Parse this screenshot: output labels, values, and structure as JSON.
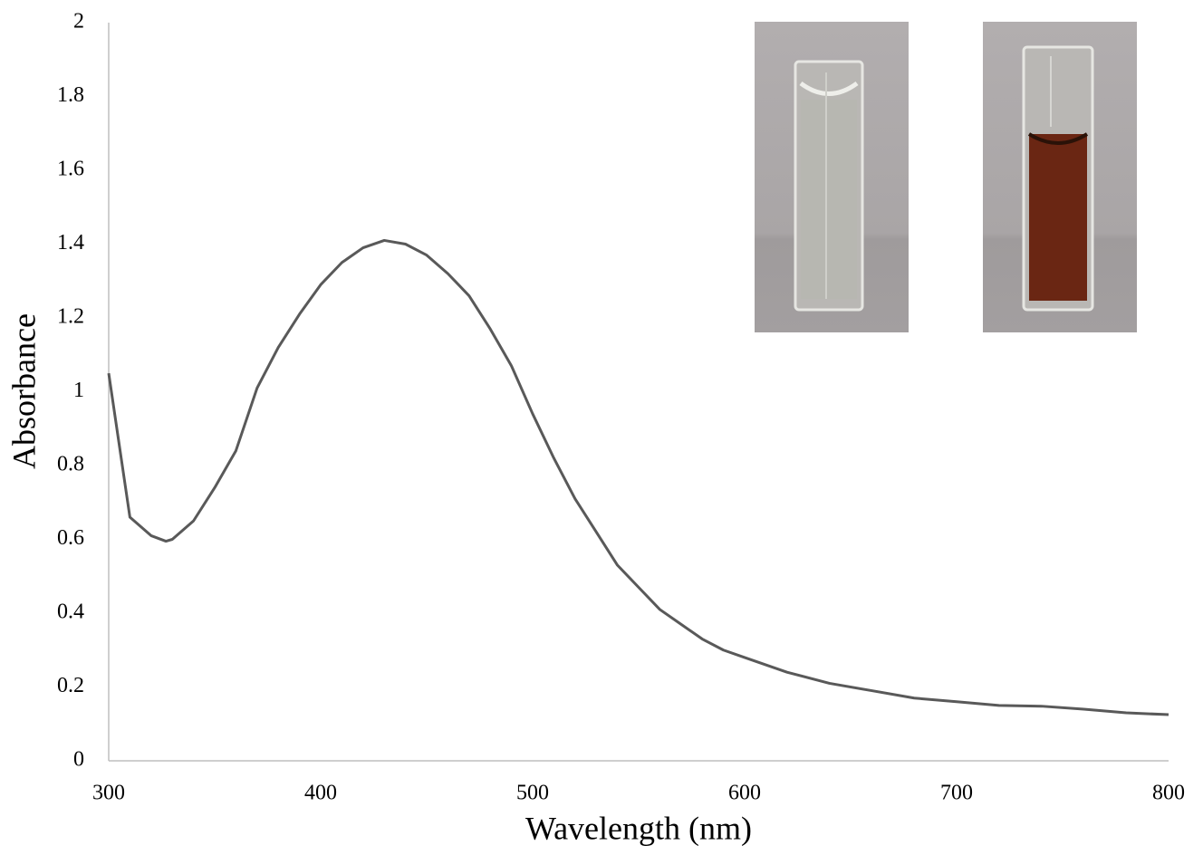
{
  "chart_data": {
    "type": "line",
    "x_label": "Wavelength (nm)",
    "y_label": "Absorbance",
    "x": [
      300,
      310,
      320,
      327,
      330,
      340,
      350,
      360,
      370,
      380,
      390,
      400,
      410,
      420,
      430,
      440,
      450,
      460,
      470,
      480,
      490,
      500,
      510,
      520,
      530,
      540,
      550,
      560,
      570,
      580,
      590,
      600,
      620,
      640,
      660,
      680,
      700,
      720,
      740,
      760,
      780,
      800
    ],
    "values": [
      1.05,
      0.66,
      0.61,
      0.595,
      0.6,
      0.65,
      0.74,
      0.84,
      1.01,
      1.12,
      1.21,
      1.29,
      1.35,
      1.39,
      1.41,
      1.4,
      1.37,
      1.32,
      1.26,
      1.17,
      1.07,
      0.94,
      0.82,
      0.71,
      0.62,
      0.53,
      0.47,
      0.41,
      0.37,
      0.33,
      0.3,
      0.28,
      0.24,
      0.21,
      0.19,
      0.17,
      0.16,
      0.15,
      0.148,
      0.14,
      0.13,
      0.125
    ],
    "color": "#595959",
    "xlim": [
      300,
      800
    ],
    "xticks": [
      300,
      400,
      500,
      600,
      700,
      800
    ],
    "ylim": [
      0,
      2
    ],
    "yticks": [
      0,
      0.2,
      0.4,
      0.6,
      0.8,
      1,
      1.2,
      1.4,
      1.6,
      1.8,
      2
    ],
    "grid": false
  }
}
